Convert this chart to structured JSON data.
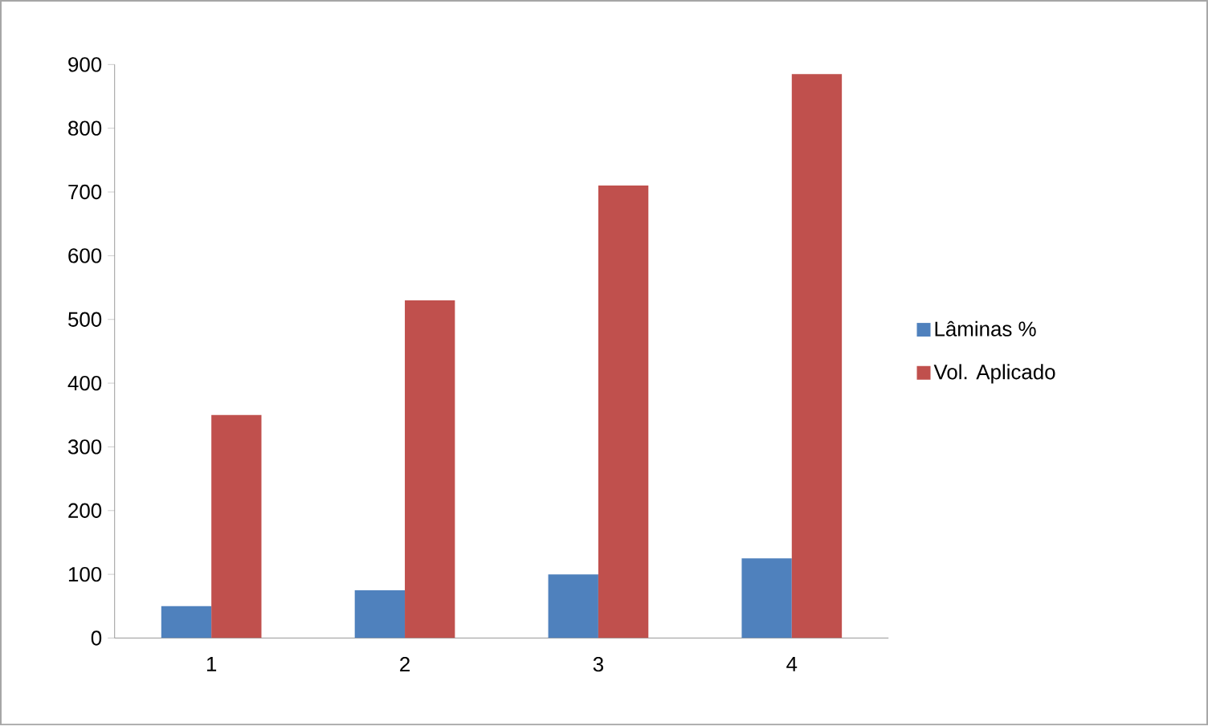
{
  "chart_data": {
    "type": "bar",
    "categories": [
      "1",
      "2",
      "3",
      "4"
    ],
    "series": [
      {
        "name": "Lâminas %",
        "color": "#4f81bd",
        "values": [
          50,
          75,
          100,
          125
        ]
      },
      {
        "name": "Vol. Aplicado",
        "color": "#c0504d",
        "values": [
          350,
          530,
          710,
          885
        ]
      }
    ],
    "ylim": [
      0,
      900
    ],
    "yticks": [
      0,
      100,
      200,
      300,
      400,
      500,
      600,
      700,
      800,
      900
    ],
    "legend": "right"
  }
}
